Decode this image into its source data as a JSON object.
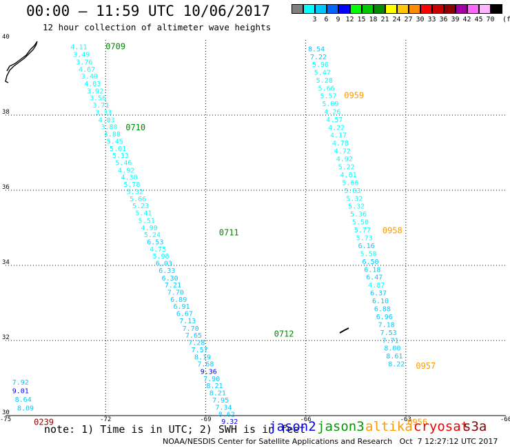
{
  "header": {
    "title": "00:00 – 11:59 UTC 10/06/2017",
    "subtitle": "12 hour collection of altimeter wave heights"
  },
  "legend": {
    "unit": "(ft)",
    "swatches": [
      {
        "label": "",
        "color": "#7f7f7f"
      },
      {
        "label": "3",
        "color": "#00ffff"
      },
      {
        "label": "6",
        "color": "#00c8ff"
      },
      {
        "label": "9",
        "color": "#0064ff"
      },
      {
        "label": "12",
        "color": "#0000ff"
      },
      {
        "label": "15",
        "color": "#00ff00"
      },
      {
        "label": "18",
        "color": "#00c800"
      },
      {
        "label": "21",
        "color": "#008c00"
      },
      {
        "label": "24",
        "color": "#ffff00"
      },
      {
        "label": "27",
        "color": "#ffc800"
      },
      {
        "label": "30",
        "color": "#ff8c00"
      },
      {
        "label": "33",
        "color": "#ff0000"
      },
      {
        "label": "36",
        "color": "#c80000"
      },
      {
        "label": "39",
        "color": "#8c0000"
      },
      {
        "label": "42",
        "color": "#a000a0"
      },
      {
        "label": "45",
        "color": "#ff64ff"
      },
      {
        "label": "70",
        "color": "#ffb4ff"
      },
      {
        "label": "",
        "color": "#000000"
      }
    ]
  },
  "footer": {
    "note": "note: 1) Time is in UTC; 2) SWH is in feet",
    "credit": "NOAA/NESDIS Center for Satellite Applications and Research   Oct  7 12:27:12 UTC 2017",
    "satellites": [
      {
        "name": "jason2",
        "color": "#0000ee"
      },
      {
        "name": "jason3",
        "color": "#009900"
      },
      {
        "name": "altika",
        "color": "#ff9900"
      },
      {
        "name": "cryosat",
        "color": "#ee0000"
      },
      {
        "name": "s3a",
        "color": "#880000"
      }
    ]
  },
  "colors": {
    "swh_low": "#00ffff",
    "swh_mid": "#00c8ff",
    "swh_high": "#0000ff",
    "jason3_time": "#008800",
    "altika_time": "#ff9900",
    "s3a_time": "#880000",
    "grid": "#000000"
  },
  "chart_data": {
    "type": "scatter",
    "title": "00:00 – 11:59 UTC 10/06/2017",
    "subtitle": "12 hour collection of altimeter wave heights",
    "x_axis": {
      "ticks": [
        "-75",
        "-72",
        "-69",
        "-66",
        "-63",
        "-60"
      ],
      "range": [
        -75,
        -60
      ]
    },
    "y_axis": {
      "ticks": [
        "30",
        "32",
        "34",
        "36",
        "38",
        "40"
      ],
      "range": [
        30,
        40
      ]
    },
    "grid": true,
    "tracks": [
      {
        "satellite": "jason3",
        "labels": [
          {
            "text": "0709",
            "lon": -72.0,
            "lat": 39.75
          },
          {
            "text": "0710",
            "lon": -71.4,
            "lat": 37.6
          },
          {
            "text": "0711",
            "lon": -68.6,
            "lat": 34.8
          },
          {
            "text": "0712",
            "lon": -66.95,
            "lat": 32.1
          }
        ],
        "points": [
          {
            "lon": -72.8,
            "lat": 39.75,
            "swh": 4.11
          },
          {
            "lon": -72.72,
            "lat": 39.55,
            "swh": 3.49
          },
          {
            "lon": -72.64,
            "lat": 39.35,
            "swh": 3.76
          },
          {
            "lon": -72.56,
            "lat": 39.16,
            "swh": 4.67
          },
          {
            "lon": -72.48,
            "lat": 38.97,
            "swh": 3.4
          },
          {
            "lon": -72.39,
            "lat": 38.77,
            "swh": 4.03
          },
          {
            "lon": -72.31,
            "lat": 38.58,
            "swh": 3.92
          },
          {
            "lon": -72.23,
            "lat": 38.39,
            "swh": 3.56
          },
          {
            "lon": -72.14,
            "lat": 38.2,
            "swh": 3.71
          },
          {
            "lon": -72.06,
            "lat": 38.01,
            "swh": 3.33
          },
          {
            "lon": -71.97,
            "lat": 37.81,
            "swh": 4.03
          },
          {
            "lon": -71.89,
            "lat": 37.62,
            "swh": 3.8
          },
          {
            "lon": -71.8,
            "lat": 37.43,
            "swh": 4.88
          },
          {
            "lon": -71.72,
            "lat": 37.24,
            "swh": 5.45
          },
          {
            "lon": -71.63,
            "lat": 37.05,
            "swh": 5.01
          },
          {
            "lon": -71.55,
            "lat": 36.86,
            "swh": 5.13
          },
          {
            "lon": -71.46,
            "lat": 36.67,
            "swh": 5.46
          },
          {
            "lon": -71.38,
            "lat": 36.47,
            "swh": 4.92
          },
          {
            "lon": -71.29,
            "lat": 36.28,
            "swh": 4.3
          },
          {
            "lon": -71.21,
            "lat": 36.09,
            "swh": 5.78
          },
          {
            "lon": -71.12,
            "lat": 35.9,
            "swh": 5.32
          },
          {
            "lon": -71.03,
            "lat": 35.71,
            "swh": 5.66
          },
          {
            "lon": -70.95,
            "lat": 35.52,
            "swh": 5.23
          },
          {
            "lon": -70.86,
            "lat": 35.33,
            "swh": 5.41
          },
          {
            "lon": -70.77,
            "lat": 35.13,
            "swh": 5.51
          },
          {
            "lon": -70.69,
            "lat": 34.94,
            "swh": 4.9
          },
          {
            "lon": -70.6,
            "lat": 34.75,
            "swh": 5.24
          },
          {
            "lon": -70.51,
            "lat": 34.56,
            "swh": 6.53
          },
          {
            "lon": -70.43,
            "lat": 34.37,
            "swh": 4.75
          },
          {
            "lon": -70.34,
            "lat": 34.18,
            "swh": 5.98
          },
          {
            "lon": -70.25,
            "lat": 33.99,
            "swh": 6.03
          },
          {
            "lon": -70.16,
            "lat": 33.8,
            "swh": 6.33
          },
          {
            "lon": -70.07,
            "lat": 33.6,
            "swh": 6.3
          },
          {
            "lon": -69.98,
            "lat": 33.41,
            "swh": 7.21
          },
          {
            "lon": -69.9,
            "lat": 33.22,
            "swh": 7.7
          },
          {
            "lon": -69.81,
            "lat": 33.03,
            "swh": 6.89
          },
          {
            "lon": -69.72,
            "lat": 32.84,
            "swh": 6.91
          },
          {
            "lon": -69.63,
            "lat": 32.65,
            "swh": 6.67
          },
          {
            "lon": -69.54,
            "lat": 32.46,
            "swh": 7.13
          },
          {
            "lon": -69.45,
            "lat": 32.26,
            "swh": 7.7
          },
          {
            "lon": -69.36,
            "lat": 32.07,
            "swh": 7.65
          },
          {
            "lon": -69.27,
            "lat": 31.88,
            "swh": 7.28
          },
          {
            "lon": -69.18,
            "lat": 31.69,
            "swh": 7.57
          },
          {
            "lon": -69.09,
            "lat": 31.5,
            "swh": 8.19
          },
          {
            "lon": -69.0,
            "lat": 31.31,
            "swh": 7.68
          },
          {
            "lon": -68.91,
            "lat": 31.11,
            "swh": 9.36
          },
          {
            "lon": -68.82,
            "lat": 30.92,
            "swh": 7.9
          },
          {
            "lon": -68.73,
            "lat": 30.73,
            "swh": 8.21
          },
          {
            "lon": -68.64,
            "lat": 30.54,
            "swh": 8.21
          },
          {
            "lon": -68.55,
            "lat": 30.35,
            "swh": 7.95
          },
          {
            "lon": -68.46,
            "lat": 30.16,
            "swh": 7.34
          },
          {
            "lon": -68.37,
            "lat": 29.97,
            "swh": 8.62
          },
          {
            "lon": -68.28,
            "lat": 29.78,
            "swh": 9.32
          }
        ]
      },
      {
        "satellite": "altika",
        "labels": [
          {
            "text": "0959",
            "lon": -64.85,
            "lat": 38.45
          },
          {
            "text": "0958",
            "lon": -63.7,
            "lat": 34.85
          },
          {
            "text": "0957",
            "lon": -62.7,
            "lat": 31.25
          },
          {
            "text": "0956",
            "lon": -62.95,
            "lat": 29.75
          }
        ],
        "points": [
          {
            "lon": -65.68,
            "lat": 39.7,
            "swh": 8.54
          },
          {
            "lon": -65.62,
            "lat": 39.49,
            "swh": 7.22
          },
          {
            "lon": -65.56,
            "lat": 39.28,
            "swh": 5.96
          },
          {
            "lon": -65.5,
            "lat": 39.07,
            "swh": 5.47
          },
          {
            "lon": -65.44,
            "lat": 38.86,
            "swh": 5.28
          },
          {
            "lon": -65.38,
            "lat": 38.65,
            "swh": 5.66
          },
          {
            "lon": -65.32,
            "lat": 38.45,
            "swh": 5.57
          },
          {
            "lon": -65.26,
            "lat": 38.24,
            "swh": 5.09
          },
          {
            "lon": -65.2,
            "lat": 38.03,
            "swh": 4.26
          },
          {
            "lon": -65.14,
            "lat": 37.82,
            "swh": 4.57
          },
          {
            "lon": -65.08,
            "lat": 37.61,
            "swh": 4.22
          },
          {
            "lon": -65.02,
            "lat": 37.4,
            "swh": 4.17
          },
          {
            "lon": -64.96,
            "lat": 37.19,
            "swh": 4.78
          },
          {
            "lon": -64.9,
            "lat": 36.98,
            "swh": 4.72
          },
          {
            "lon": -64.84,
            "lat": 36.77,
            "swh": 4.92
          },
          {
            "lon": -64.78,
            "lat": 36.56,
            "swh": 5.22
          },
          {
            "lon": -64.72,
            "lat": 36.35,
            "swh": 4.81
          },
          {
            "lon": -64.66,
            "lat": 36.14,
            "swh": 5.66
          },
          {
            "lon": -64.6,
            "lat": 35.93,
            "swh": 5.63
          },
          {
            "lon": -64.54,
            "lat": 35.72,
            "swh": 5.32
          },
          {
            "lon": -64.48,
            "lat": 35.51,
            "swh": 5.32
          },
          {
            "lon": -64.42,
            "lat": 35.3,
            "swh": 5.36
          },
          {
            "lon": -64.36,
            "lat": 35.09,
            "swh": 5.5
          },
          {
            "lon": -64.3,
            "lat": 34.88,
            "swh": 5.77
          },
          {
            "lon": -64.24,
            "lat": 34.67,
            "swh": 5.73
          },
          {
            "lon": -64.18,
            "lat": 34.46,
            "swh": 6.16
          },
          {
            "lon": -64.12,
            "lat": 34.25,
            "swh": 5.58
          },
          {
            "lon": -64.06,
            "lat": 34.04,
            "swh": 6.5
          },
          {
            "lon": -64.0,
            "lat": 33.83,
            "swh": 6.18
          },
          {
            "lon": -63.94,
            "lat": 33.62,
            "swh": 6.47
          },
          {
            "lon": -63.88,
            "lat": 33.41,
            "swh": 4.87
          },
          {
            "lon": -63.82,
            "lat": 33.2,
            "swh": 6.37
          },
          {
            "lon": -63.76,
            "lat": 32.99,
            "swh": 6.1
          },
          {
            "lon": -63.7,
            "lat": 32.78,
            "swh": 6.88
          },
          {
            "lon": -63.64,
            "lat": 32.57,
            "swh": 6.96
          },
          {
            "lon": -63.58,
            "lat": 32.36,
            "swh": 7.18
          },
          {
            "lon": -63.52,
            "lat": 32.15,
            "swh": 7.53
          },
          {
            "lon": -63.46,
            "lat": 31.94,
            "swh": 7.71
          },
          {
            "lon": -63.4,
            "lat": 31.73,
            "swh": 8.0
          },
          {
            "lon": -63.34,
            "lat": 31.52,
            "swh": 8.61
          },
          {
            "lon": -63.28,
            "lat": 31.31,
            "swh": 8.22
          }
        ]
      },
      {
        "satellite": "s3a",
        "labels": [
          {
            "text": "0239",
            "lon": -74.15,
            "lat": 29.75
          }
        ],
        "points": [
          {
            "lon": -74.55,
            "lat": 30.83,
            "swh": 7.92
          },
          {
            "lon": -74.55,
            "lat": 30.6,
            "swh": 9.01
          },
          {
            "lon": -74.47,
            "lat": 30.37,
            "swh": 8.64
          },
          {
            "lon": -74.4,
            "lat": 30.14,
            "swh": 8.09
          }
        ]
      }
    ]
  }
}
